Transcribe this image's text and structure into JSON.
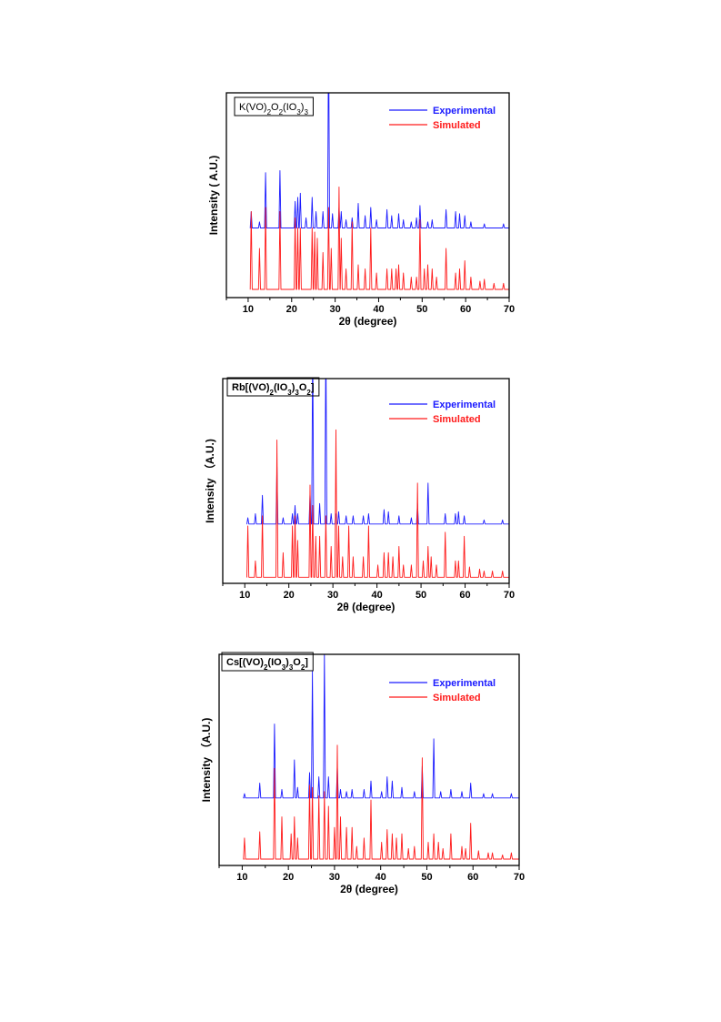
{
  "chart_data": [
    {
      "type": "line",
      "title": "K(VO)2O2(IO3)3",
      "title_html": "K(VO)<tspan baseline-shift='sub' font-size='8'>2</tspan>O<tspan baseline-shift='sub' font-size='8'>2</tspan>(IO<tspan baseline-shift='sub' font-size='8'>3</tspan>)<tspan baseline-shift='sub' font-size='8'>3</tspan>",
      "xlabel": "2θ (degree)",
      "ylabel": "Intensity ( A.U.)",
      "xlim": [
        5,
        70
      ],
      "x_ticks": [
        10,
        20,
        30,
        40,
        50,
        60,
        70
      ],
      "legend_position": "top-right",
      "series": [
        {
          "name": "Experimental",
          "color": "#1a1aff",
          "baseline": 0.34,
          "peaks": [
            [
              10.7,
              0.08
            ],
            [
              12.6,
              0.03
            ],
            [
              14.0,
              0.27
            ],
            [
              17.3,
              0.28
            ],
            [
              20.8,
              0.13
            ],
            [
              21.4,
              0.15
            ],
            [
              22.0,
              0.17
            ],
            [
              23.3,
              0.05
            ],
            [
              24.7,
              0.15
            ],
            [
              25.6,
              0.08
            ],
            [
              27.2,
              0.08
            ],
            [
              28.5,
              1.0
            ],
            [
              29.4,
              0.07
            ],
            [
              30.9,
              0.1
            ],
            [
              31.4,
              0.08
            ],
            [
              32.5,
              0.04
            ],
            [
              33.9,
              0.05
            ],
            [
              35.3,
              0.12
            ],
            [
              36.9,
              0.06
            ],
            [
              38.2,
              0.1
            ],
            [
              39.5,
              0.04
            ],
            [
              41.9,
              0.09
            ],
            [
              43.0,
              0.06
            ],
            [
              44.6,
              0.07
            ],
            [
              45.7,
              0.04
            ],
            [
              47.5,
              0.03
            ],
            [
              48.7,
              0.05
            ],
            [
              49.5,
              0.11
            ],
            [
              51.3,
              0.03
            ],
            [
              52.3,
              0.04
            ],
            [
              55.5,
              0.09
            ],
            [
              57.7,
              0.08
            ],
            [
              58.6,
              0.07
            ],
            [
              59.8,
              0.06
            ],
            [
              61.2,
              0.03
            ],
            [
              64.3,
              0.02
            ],
            [
              68.7,
              0.02
            ]
          ]
        },
        {
          "name": "Simulated",
          "color": "#ff1a1a",
          "baseline": 0.04,
          "peaks": [
            [
              10.7,
              0.38
            ],
            [
              12.6,
              0.2
            ],
            [
              14.0,
              0.4
            ],
            [
              17.3,
              0.38
            ],
            [
              20.8,
              0.35
            ],
            [
              21.4,
              0.3
            ],
            [
              22.0,
              0.3
            ],
            [
              24.7,
              0.3
            ],
            [
              25.3,
              0.28
            ],
            [
              25.9,
              0.25
            ],
            [
              27.2,
              0.18
            ],
            [
              28.5,
              0.4
            ],
            [
              29.1,
              0.2
            ],
            [
              30.9,
              0.5
            ],
            [
              31.4,
              0.25
            ],
            [
              32.5,
              0.1
            ],
            [
              33.9,
              0.33
            ],
            [
              35.3,
              0.12
            ],
            [
              36.9,
              0.1
            ],
            [
              38.2,
              0.3
            ],
            [
              39.5,
              0.08
            ],
            [
              41.9,
              0.1
            ],
            [
              43.0,
              0.1
            ],
            [
              44.0,
              0.1
            ],
            [
              44.6,
              0.12
            ],
            [
              45.7,
              0.08
            ],
            [
              47.5,
              0.06
            ],
            [
              48.7,
              0.06
            ],
            [
              49.5,
              0.34
            ],
            [
              50.5,
              0.1
            ],
            [
              51.3,
              0.12
            ],
            [
              52.3,
              0.1
            ],
            [
              53.3,
              0.06
            ],
            [
              55.5,
              0.2
            ],
            [
              57.7,
              0.08
            ],
            [
              58.6,
              0.1
            ],
            [
              59.8,
              0.14
            ],
            [
              61.2,
              0.06
            ],
            [
              63.3,
              0.04
            ],
            [
              64.3,
              0.05
            ],
            [
              66.5,
              0.03
            ],
            [
              68.7,
              0.03
            ]
          ]
        }
      ]
    },
    {
      "type": "line",
      "title": "Rb[(VO)2(IO3)3O2]",
      "title_html": "Rb[(VO)<tspan baseline-shift='sub' font-size='8'>2</tspan>(IO<tspan baseline-shift='sub' font-size='8'>3</tspan>)<tspan baseline-shift='sub' font-size='8'>3</tspan>O<tspan baseline-shift='sub' font-size='8'>2</tspan>]",
      "xlabel": "2θ (degree)",
      "ylabel": "Intensity （A.U.)",
      "xlim": [
        5,
        70
      ],
      "x_ticks": [
        10,
        20,
        30,
        40,
        50,
        60,
        70
      ],
      "legend_position": "top-right",
      "series": [
        {
          "name": "Experimental",
          "color": "#1a1aff",
          "baseline": 0.29,
          "peaks": [
            [
              10.7,
              0.03
            ],
            [
              12.4,
              0.05
            ],
            [
              14.0,
              0.14
            ],
            [
              17.3,
              0.28
            ],
            [
              18.7,
              0.03
            ],
            [
              20.8,
              0.05
            ],
            [
              21.4,
              0.09
            ],
            [
              22.0,
              0.05
            ],
            [
              24.8,
              0.15
            ],
            [
              25.4,
              0.9
            ],
            [
              27.0,
              0.1
            ],
            [
              28.4,
              0.92
            ],
            [
              29.6,
              0.05
            ],
            [
              30.7,
              0.05
            ],
            [
              31.3,
              0.06
            ],
            [
              33.0,
              0.04
            ],
            [
              34.6,
              0.04
            ],
            [
              36.9,
              0.04
            ],
            [
              38.1,
              0.05
            ],
            [
              41.6,
              0.07
            ],
            [
              42.6,
              0.06
            ],
            [
              45.0,
              0.04
            ],
            [
              47.8,
              0.03
            ],
            [
              49.2,
              0.1
            ],
            [
              51.6,
              0.2
            ],
            [
              55.5,
              0.05
            ],
            [
              57.8,
              0.05
            ],
            [
              58.5,
              0.06
            ],
            [
              59.8,
              0.04
            ],
            [
              64.3,
              0.02
            ],
            [
              68.5,
              0.02
            ]
          ]
        },
        {
          "name": "Simulated",
          "color": "#ff1a1a",
          "baseline": 0.03,
          "peaks": [
            [
              10.7,
              0.25
            ],
            [
              12.4,
              0.08
            ],
            [
              14.0,
              0.3
            ],
            [
              17.3,
              0.67
            ],
            [
              18.7,
              0.12
            ],
            [
              20.8,
              0.25
            ],
            [
              21.4,
              0.3
            ],
            [
              22.0,
              0.18
            ],
            [
              24.8,
              0.45
            ],
            [
              25.4,
              0.35
            ],
            [
              26.1,
              0.2
            ],
            [
              27.0,
              0.2
            ],
            [
              28.4,
              0.3
            ],
            [
              29.6,
              0.15
            ],
            [
              30.7,
              0.72
            ],
            [
              31.3,
              0.25
            ],
            [
              32.2,
              0.1
            ],
            [
              33.6,
              0.25
            ],
            [
              34.6,
              0.1
            ],
            [
              36.9,
              0.1
            ],
            [
              38.1,
              0.25
            ],
            [
              40.2,
              0.06
            ],
            [
              41.6,
              0.12
            ],
            [
              42.6,
              0.12
            ],
            [
              43.6,
              0.1
            ],
            [
              45.0,
              0.15
            ],
            [
              46.0,
              0.06
            ],
            [
              47.8,
              0.06
            ],
            [
              49.2,
              0.46
            ],
            [
              50.5,
              0.08
            ],
            [
              51.6,
              0.15
            ],
            [
              52.3,
              0.1
            ],
            [
              53.5,
              0.06
            ],
            [
              55.5,
              0.22
            ],
            [
              57.8,
              0.08
            ],
            [
              58.5,
              0.08
            ],
            [
              59.8,
              0.2
            ],
            [
              61.0,
              0.05
            ],
            [
              63.3,
              0.04
            ],
            [
              64.3,
              0.03
            ],
            [
              66.2,
              0.03
            ],
            [
              68.5,
              0.03
            ]
          ]
        }
      ]
    },
    {
      "type": "line",
      "title": "Cs[(VO)2(IO3)3O2]",
      "title_html": "Cs[(VO)<tspan baseline-shift='sub' font-size='8'>2</tspan>(IO<tspan baseline-shift='sub' font-size='8'>3</tspan>)<tspan baseline-shift='sub' font-size='8'>3</tspan>O<tspan baseline-shift='sub' font-size='8'>2</tspan>]",
      "xlabel": "2θ (degree)",
      "ylabel": "Intensity （A.U.)",
      "xlim": [
        5,
        70
      ],
      "x_ticks": [
        10,
        20,
        30,
        40,
        50,
        60,
        70
      ],
      "legend_position": "top-right",
      "series": [
        {
          "name": "Experimental",
          "color": "#1a1aff",
          "baseline": 0.32,
          "peaks": [
            [
              10.5,
              0.02
            ],
            [
              13.8,
              0.07
            ],
            [
              17.0,
              0.35
            ],
            [
              18.6,
              0.04
            ],
            [
              21.3,
              0.18
            ],
            [
              22.0,
              0.05
            ],
            [
              24.6,
              0.12
            ],
            [
              25.2,
              0.6
            ],
            [
              26.6,
              0.1
            ],
            [
              27.8,
              0.69
            ],
            [
              28.7,
              0.1
            ],
            [
              30.6,
              0.15
            ],
            [
              31.3,
              0.04
            ],
            [
              32.6,
              0.03
            ],
            [
              33.8,
              0.04
            ],
            [
              36.4,
              0.04
            ],
            [
              37.9,
              0.08
            ],
            [
              40.2,
              0.03
            ],
            [
              41.4,
              0.1
            ],
            [
              42.5,
              0.08
            ],
            [
              44.6,
              0.05
            ],
            [
              47.3,
              0.03
            ],
            [
              49.0,
              0.15
            ],
            [
              51.5,
              0.28
            ],
            [
              53.0,
              0.03
            ],
            [
              55.2,
              0.04
            ],
            [
              57.6,
              0.03
            ],
            [
              59.5,
              0.07
            ],
            [
              62.3,
              0.02
            ],
            [
              64.2,
              0.02
            ],
            [
              68.3,
              0.02
            ]
          ]
        },
        {
          "name": "Simulated",
          "color": "#ff1a1a",
          "baseline": 0.03,
          "peaks": [
            [
              10.5,
              0.1
            ],
            [
              13.8,
              0.13
            ],
            [
              17.0,
              0.43
            ],
            [
              18.6,
              0.2
            ],
            [
              20.6,
              0.12
            ],
            [
              21.3,
              0.2
            ],
            [
              22.0,
              0.1
            ],
            [
              24.6,
              0.35
            ],
            [
              25.2,
              0.34
            ],
            [
              26.6,
              0.3
            ],
            [
              27.8,
              0.32
            ],
            [
              28.7,
              0.25
            ],
            [
              30.0,
              0.15
            ],
            [
              30.6,
              0.54
            ],
            [
              31.3,
              0.2
            ],
            [
              32.6,
              0.15
            ],
            [
              33.8,
              0.15
            ],
            [
              34.8,
              0.06
            ],
            [
              36.4,
              0.1
            ],
            [
              37.9,
              0.28
            ],
            [
              40.2,
              0.08
            ],
            [
              41.4,
              0.14
            ],
            [
              42.5,
              0.12
            ],
            [
              43.4,
              0.1
            ],
            [
              44.6,
              0.12
            ],
            [
              46.0,
              0.05
            ],
            [
              47.3,
              0.06
            ],
            [
              49.0,
              0.48
            ],
            [
              50.3,
              0.08
            ],
            [
              51.5,
              0.12
            ],
            [
              52.5,
              0.08
            ],
            [
              53.5,
              0.05
            ],
            [
              55.2,
              0.12
            ],
            [
              57.6,
              0.06
            ],
            [
              58.4,
              0.05
            ],
            [
              59.5,
              0.17
            ],
            [
              61.2,
              0.04
            ],
            [
              63.3,
              0.03
            ],
            [
              64.2,
              0.03
            ],
            [
              66.4,
              0.02
            ],
            [
              68.3,
              0.03
            ]
          ]
        }
      ]
    }
  ]
}
